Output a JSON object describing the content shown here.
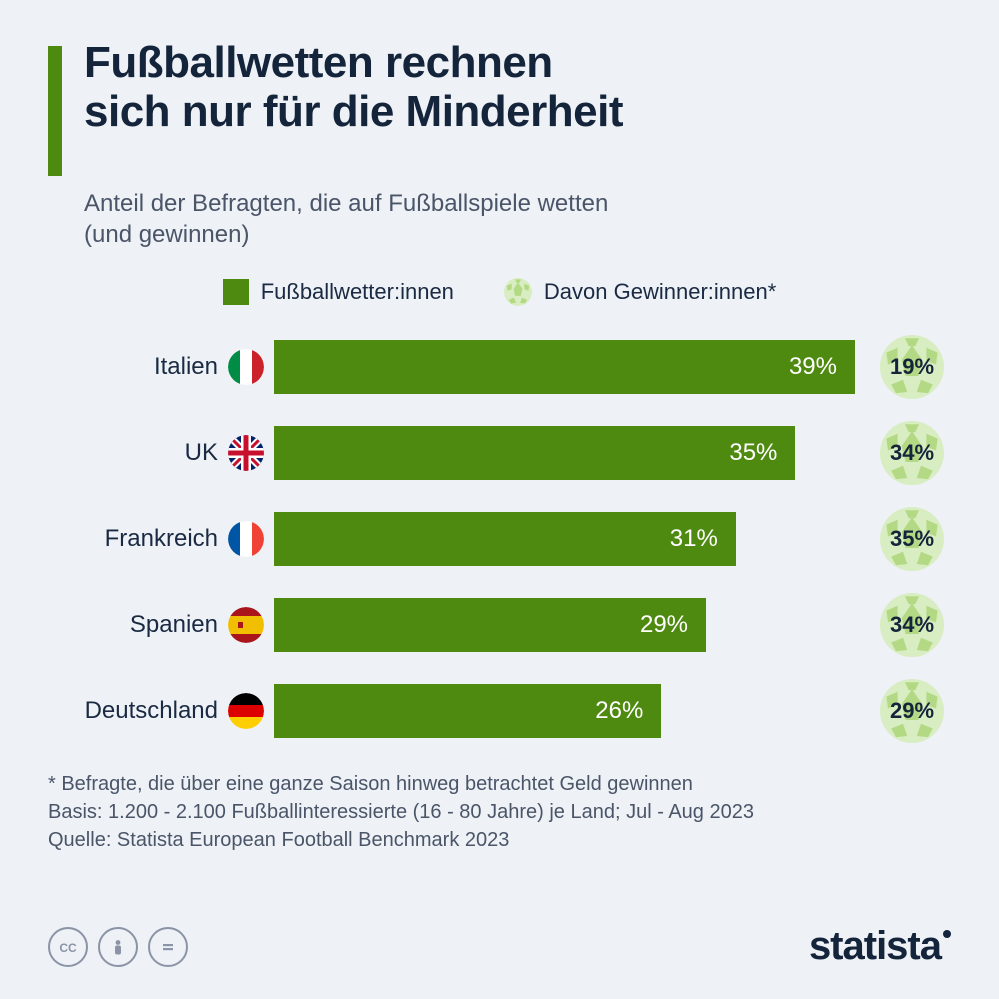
{
  "colors": {
    "background": "#eef1f6",
    "accent": "#4f8a10",
    "text_primary": "#14243b",
    "text_secondary": "#4a5568",
    "ball_light": "#d8edc1",
    "ball_dark": "#b4d985",
    "icon_muted": "#8a94a6"
  },
  "header": {
    "title_line1": "Fußballwetten rechnen",
    "title_line2": "sich nur für die Minderheit",
    "subtitle_line1": "Anteil der Befragten, die auf Fußballspiele wetten",
    "subtitle_line2": "(und gewinnen)"
  },
  "legend": {
    "bettors": "Fußballwetter:innen",
    "winners": "Davon Gewinner:innen*"
  },
  "chart": {
    "type": "bar",
    "bar_color": "#4f8a10",
    "bar_text_color": "#ffffff",
    "max_value": 39,
    "rows": [
      {
        "country": "Italien",
        "flag": "it",
        "bettors_pct": 39,
        "winners_pct": 19
      },
      {
        "country": "UK",
        "flag": "uk",
        "bettors_pct": 35,
        "winners_pct": 34
      },
      {
        "country": "Frankreich",
        "flag": "fr",
        "bettors_pct": 31,
        "winners_pct": 35
      },
      {
        "country": "Spanien",
        "flag": "es",
        "bettors_pct": 29,
        "winners_pct": 34
      },
      {
        "country": "Deutschland",
        "flag": "de",
        "bettors_pct": 26,
        "winners_pct": 29
      }
    ]
  },
  "footnote": {
    "line1": "* Befragte, die über eine ganze Saison hinweg betrachtet Geld gewinnen",
    "line2": "Basis: 1.200 - 2.100 Fußballinteressierte (16 - 80 Jahre) je Land; Jul - Aug 2023",
    "line3": "Quelle: Statista European Football Benchmark 2023"
  },
  "footer": {
    "brand": "statista",
    "cc": [
      "cc",
      "by",
      "nd"
    ]
  },
  "flags": {
    "it": {
      "left": "#008C45",
      "mid": "#ffffff",
      "right": "#CD212A"
    },
    "fr": {
      "left": "#0055A4",
      "mid": "#ffffff",
      "right": "#EF4135"
    },
    "de": {
      "top": "#000000",
      "mid": "#DD0000",
      "bot": "#FFCE00"
    },
    "es": {
      "top": "#AA151B",
      "mid": "#F1BF00",
      "bot": "#AA151B"
    }
  }
}
